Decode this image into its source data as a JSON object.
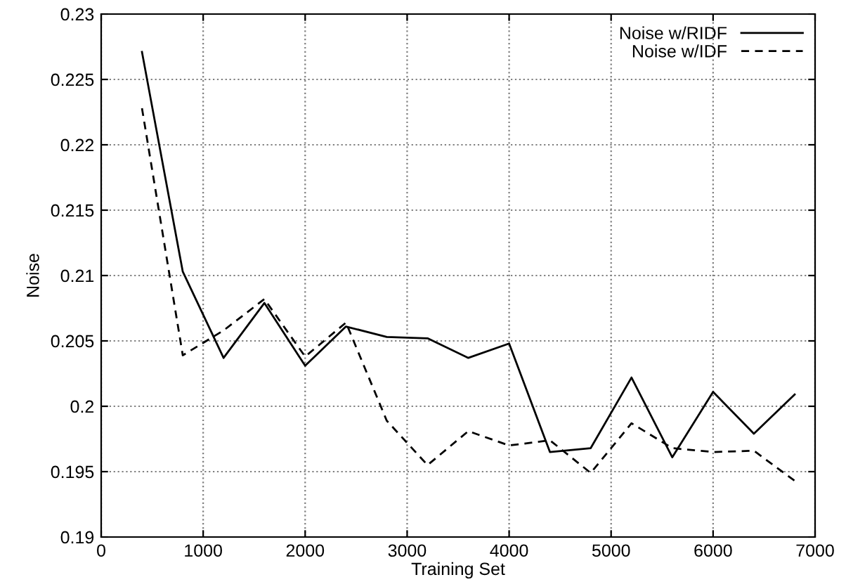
{
  "chart_data": {
    "type": "line",
    "xlabel": "Training Set",
    "ylabel": "Noise",
    "x": [
      400,
      800,
      1200,
      1600,
      2000,
      2400,
      2800,
      3200,
      3600,
      4000,
      4400,
      4800,
      5200,
      5600,
      6000,
      6400,
      6800
    ],
    "series": [
      {
        "name": "Noise w/RIDF",
        "color": "#000000",
        "line_style": "solid",
        "values": [
          0.2271,
          0.2103,
          0.2037,
          0.2079,
          0.2031,
          0.2061,
          0.2053,
          0.2052,
          0.2037,
          0.2048,
          0.1965,
          0.1968,
          0.2022,
          0.1961,
          0.2011,
          0.1979,
          0.2009
        ]
      },
      {
        "name": "Noise w/IDF",
        "color": "#000000",
        "line_style": "dashed",
        "values": [
          0.2228,
          0.2039,
          0.2058,
          0.2082,
          0.2038,
          0.2064,
          0.1989,
          0.1955,
          0.1981,
          0.197,
          0.1974,
          0.1949,
          0.1987,
          0.1968,
          0.1965,
          0.1966,
          0.1943
        ]
      }
    ],
    "xlim": [
      0,
      7000
    ],
    "xticks": [
      0,
      1000,
      2000,
      3000,
      4000,
      5000,
      6000,
      7000
    ],
    "ylim": [
      0.19,
      0.23
    ],
    "yticks": [
      0.19,
      0.195,
      0.2,
      0.205,
      0.21,
      0.215,
      0.22,
      0.225,
      0.23
    ],
    "grid": true,
    "legend": "top right"
  }
}
